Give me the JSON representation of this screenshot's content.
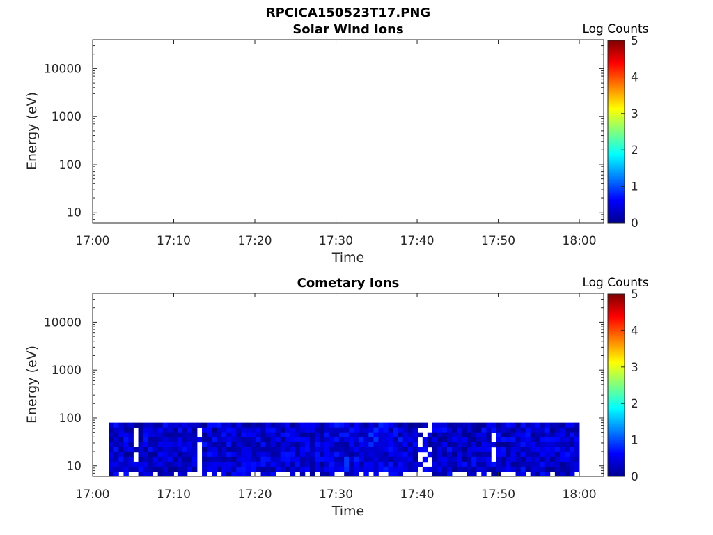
{
  "figure": {
    "title": "RPCICA150523T17.PNG"
  },
  "chart_data": [
    {
      "type": "heatmap",
      "title": "Solar Wind Ions",
      "xlabel": "Time",
      "ylabel": "Energy (eV)",
      "x_ticks": [
        "17:00",
        "17:10",
        "17:20",
        "17:30",
        "17:40",
        "17:50",
        "18:00"
      ],
      "y_ticks": [
        "10",
        "100",
        "1000",
        "10000"
      ],
      "y_scale": "log",
      "x_range": [
        "17:00",
        "18:03"
      ],
      "ylim": [
        6,
        40000
      ],
      "colorbar": {
        "label": "Log Counts",
        "ticks": [
          "0",
          "1",
          "2",
          "3",
          "4",
          "5"
        ],
        "range": [
          0,
          5
        ],
        "colormap": "jet"
      },
      "data": "empty"
    },
    {
      "type": "heatmap",
      "title": "Cometary Ions",
      "xlabel": "Time",
      "ylabel": "Energy (eV)",
      "x_ticks": [
        "17:00",
        "17:10",
        "17:20",
        "17:30",
        "17:40",
        "17:50",
        "18:00"
      ],
      "y_ticks": [
        "10",
        "100",
        "1000",
        "10000"
      ],
      "y_scale": "log",
      "x_range": [
        "17:00",
        "18:03"
      ],
      "ylim": [
        6,
        40000
      ],
      "colorbar": {
        "label": "Log Counts",
        "ticks": [
          "0",
          "1",
          "2",
          "3",
          "4",
          "5"
        ],
        "range": [
          0,
          5
        ],
        "colormap": "jet"
      },
      "data_time_range": [
        "17:02",
        "18:00"
      ],
      "data_energy_range_eV": [
        6,
        80
      ],
      "value_range_log_counts": [
        0,
        0.9
      ],
      "summary": "Cometary ion counts concentrated below ~80 eV, mostly 0.1–0.9 log counts, brightest near 17:27–17:35; gaps near 17:05, 17:13, 17:40–17:42 and 17:49"
    }
  ]
}
